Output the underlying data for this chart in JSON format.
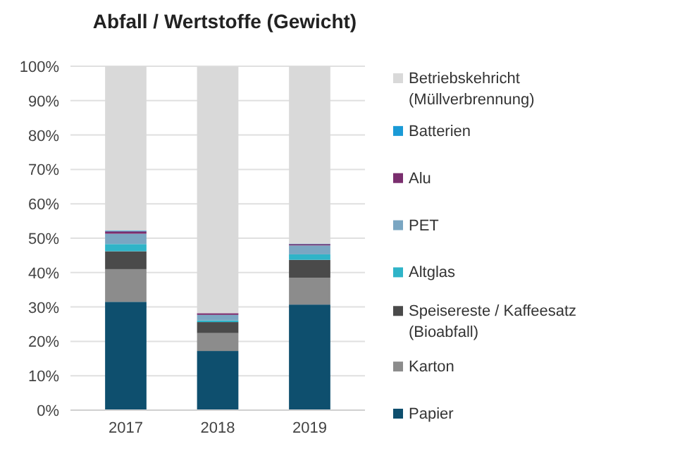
{
  "chart_data": {
    "type": "bar",
    "stacked": true,
    "title": "Abfall / Wertstoffe (Gewicht)",
    "categories": [
      "2017",
      "2018",
      "2019"
    ],
    "series": [
      {
        "name": "Papier",
        "color": "#0e4f6e",
        "values": [
          31.5,
          17.2,
          30.7
        ]
      },
      {
        "name": "Karton",
        "color": "#8c8c8c",
        "values": [
          9.5,
          5.2,
          7.8
        ]
      },
      {
        "name": "Speisereste / Kaffeesatz (Bioabfall)",
        "color": "#4a4a4a",
        "values": [
          5.2,
          3.2,
          5.2
        ]
      },
      {
        "name": "Altglas",
        "color": "#2fb4c8",
        "values": [
          2.1,
          0.5,
          1.6
        ]
      },
      {
        "name": "PET",
        "color": "#7aa6c2",
        "values": [
          3.0,
          1.6,
          2.6
        ]
      },
      {
        "name": "Alu",
        "color": "#7a2e6e",
        "values": [
          0.7,
          0.5,
          0.4
        ]
      },
      {
        "name": "Batterien",
        "color": "#1a9ad6",
        "values": [
          0.2,
          null,
          0.1
        ]
      },
      {
        "name": "Betriebskehricht (Müllverbrennung)",
        "color": "#d9d9d9",
        "values": [
          47.8,
          71.7,
          51.6
        ]
      }
    ],
    "ylim": [
      0,
      100
    ],
    "yticks": [
      {
        "value": 0,
        "label": "0%"
      },
      {
        "value": 10,
        "label": "10%"
      },
      {
        "value": 20,
        "label": "20%"
      },
      {
        "value": 30,
        "label": "30%"
      },
      {
        "value": 40,
        "label": "40%"
      },
      {
        "value": 50,
        "label": "50%"
      },
      {
        "value": 60,
        "label": "60%"
      },
      {
        "value": 70,
        "label": "70%"
      },
      {
        "value": 80,
        "label": "80%"
      },
      {
        "value": 90,
        "label": "90%"
      },
      {
        "value": 100,
        "label": "100%"
      }
    ],
    "grid": "y",
    "legend": "right"
  }
}
